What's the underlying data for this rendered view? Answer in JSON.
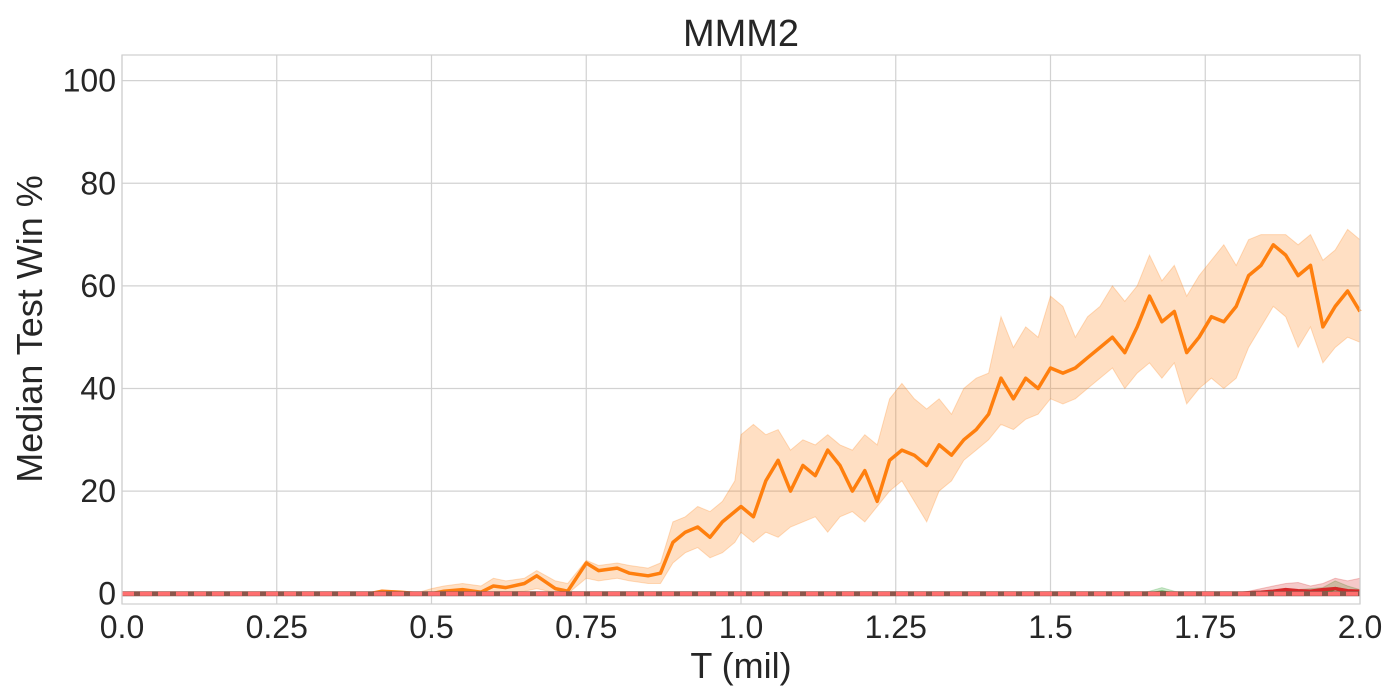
{
  "chart_data": {
    "type": "line",
    "title": "MMM2",
    "xlabel": "T (mil)",
    "ylabel": "Median Test Win %",
    "xlim": [
      0.0,
      2.0
    ],
    "ylim": [
      -2,
      105
    ],
    "xticks": [
      "0.0",
      "0.25",
      "0.5",
      "0.75",
      "1.0",
      "1.25",
      "1.5",
      "1.75",
      "2.0"
    ],
    "xtick_values": [
      0.0,
      0.25,
      0.5,
      0.75,
      1.0,
      1.25,
      1.5,
      1.75,
      2.0
    ],
    "yticks": [
      "0",
      "20",
      "40",
      "60",
      "80",
      "100"
    ],
    "ytick_values": [
      0,
      20,
      40,
      60,
      80,
      100
    ],
    "grid": true,
    "legend": null,
    "series": [
      {
        "color": "#ff7f0e",
        "style": "solid",
        "x": [
          0.0,
          0.4,
          0.42,
          0.45,
          0.48,
          0.5,
          0.52,
          0.55,
          0.58,
          0.6,
          0.62,
          0.65,
          0.67,
          0.7,
          0.72,
          0.75,
          0.77,
          0.8,
          0.82,
          0.85,
          0.87,
          0.89,
          0.91,
          0.93,
          0.95,
          0.97,
          0.99,
          1.0,
          1.02,
          1.04,
          1.06,
          1.08,
          1.1,
          1.12,
          1.14,
          1.16,
          1.18,
          1.2,
          1.22,
          1.24,
          1.26,
          1.28,
          1.3,
          1.32,
          1.34,
          1.36,
          1.38,
          1.4,
          1.42,
          1.44,
          1.46,
          1.48,
          1.5,
          1.52,
          1.54,
          1.56,
          1.58,
          1.6,
          1.62,
          1.64,
          1.66,
          1.68,
          1.7,
          1.72,
          1.74,
          1.76,
          1.78,
          1.8,
          1.82,
          1.84,
          1.86,
          1.88,
          1.9,
          1.92,
          1.94,
          1.96,
          1.98,
          2.0
        ],
        "y": [
          0,
          0,
          0.5,
          0.3,
          0,
          0,
          0.5,
          0.8,
          0.3,
          1.5,
          1.2,
          2.0,
          3.5,
          1.0,
          0.5,
          6.0,
          4.5,
          5.0,
          4.0,
          3.5,
          4.0,
          10.0,
          12.0,
          13.0,
          11.0,
          14.0,
          16.0,
          17.0,
          15.0,
          22.0,
          26.0,
          20.0,
          25.0,
          23.0,
          28.0,
          25.0,
          20.0,
          24.0,
          18.0,
          26.0,
          28.0,
          27.0,
          25.0,
          29.0,
          27.0,
          30.0,
          32.0,
          35.0,
          42.0,
          38.0,
          42.0,
          40.0,
          44.0,
          43.0,
          44.0,
          46.0,
          48.0,
          50.0,
          47.0,
          52.0,
          58.0,
          53.0,
          55.0,
          47.0,
          50.0,
          54.0,
          53.0,
          56.0,
          62.0,
          64.0,
          68.0,
          66.0,
          62.0,
          64.0,
          52.0,
          56.0,
          59.0,
          55.0
        ],
        "band_lower": [
          0,
          0,
          0,
          0,
          0,
          0,
          0,
          0,
          0,
          0.3,
          0.3,
          0.5,
          1.0,
          0.2,
          0,
          3.0,
          2.5,
          3.0,
          2.5,
          2.0,
          2.0,
          6.0,
          8.0,
          9.0,
          7.0,
          8.0,
          10.0,
          12.0,
          10.0,
          12.0,
          11.0,
          13.0,
          14.0,
          15.0,
          12.0,
          15.0,
          16.0,
          14.0,
          17.0,
          20.0,
          22.0,
          18.0,
          14.0,
          20.0,
          22.0,
          26.0,
          28.0,
          30.0,
          33.0,
          32.0,
          34.0,
          35.0,
          38.0,
          37.0,
          38.0,
          40.0,
          42.0,
          44.0,
          40.0,
          43.0,
          45.0,
          42.0,
          45.0,
          37.0,
          40.0,
          42.0,
          40.0,
          42.0,
          48.0,
          52.0,
          56.0,
          54.0,
          48.0,
          52.0,
          45.0,
          48.0,
          50.0,
          49.0
        ],
        "band_upper": [
          0,
          0,
          0.6,
          0.5,
          0.3,
          1.0,
          1.5,
          2.0,
          1.5,
          3.0,
          2.5,
          3.0,
          4.5,
          2.5,
          2.0,
          6.5,
          5.5,
          6.0,
          5.5,
          5.0,
          6.0,
          14.0,
          15.0,
          17.0,
          16.0,
          18.0,
          22.0,
          31.0,
          33.0,
          31.0,
          32.0,
          28.0,
          30.0,
          29.0,
          31.0,
          29.0,
          28.0,
          31.0,
          29.0,
          38.0,
          41.0,
          38.0,
          36.0,
          38.0,
          35.0,
          40.0,
          42.0,
          43.0,
          54.0,
          48.0,
          52.0,
          50.0,
          58.0,
          56.0,
          50.0,
          54.0,
          56.0,
          60.0,
          57.0,
          60.0,
          66.0,
          61.0,
          64.0,
          58.0,
          62.0,
          65.0,
          68.0,
          64.0,
          69.0,
          70.0,
          70.0,
          70.0,
          68.0,
          70.0,
          65.0,
          67.0,
          71.0,
          69.0
        ]
      },
      {
        "color": "#2ca02c",
        "style": "solid",
        "x": [
          0.0,
          1.64,
          1.66,
          1.68,
          1.7,
          1.72,
          1.86,
          1.88,
          1.9,
          1.92,
          1.94,
          1.96,
          1.98,
          2.0
        ],
        "y": [
          0,
          0,
          0,
          0.3,
          0,
          0,
          0,
          0.5,
          0.2,
          0.5,
          0.2,
          1.0,
          0.5,
          0
        ],
        "band_lower": [
          0,
          0,
          0,
          0,
          0,
          0,
          0,
          0,
          0,
          0,
          0,
          0,
          0,
          0
        ],
        "band_upper": [
          0,
          0,
          0.5,
          1.2,
          0.5,
          0,
          0,
          1.0,
          0.8,
          1.0,
          1.2,
          2.5,
          1.5,
          0.8
        ]
      },
      {
        "color": "#d62728",
        "style": "solid",
        "x": [
          0.0,
          1.8,
          1.82,
          1.84,
          1.86,
          1.88,
          1.9,
          1.92,
          1.94,
          1.96,
          1.98,
          2.0
        ],
        "y": [
          0,
          0,
          0.2,
          0.3,
          0.5,
          0.8,
          0.6,
          0.5,
          0.8,
          1.0,
          0.6,
          0.5
        ],
        "band_lower": [
          0,
          0,
          0,
          0,
          0,
          0,
          0,
          0,
          0,
          0,
          0,
          0
        ],
        "band_upper": [
          0,
          0,
          0.5,
          1.0,
          1.5,
          2.0,
          2.2,
          1.5,
          2.0,
          3.0,
          2.5,
          3.0
        ]
      },
      {
        "color": "#1f77b4",
        "style": "solid",
        "x": [
          0.0,
          2.0
        ],
        "y": [
          0,
          0
        ],
        "band_lower": [
          0,
          0
        ],
        "band_upper": [
          0,
          0
        ]
      },
      {
        "color": "#8c564b",
        "style": "solid",
        "x": [
          0.0,
          2.0
        ],
        "y": [
          0,
          0
        ],
        "band_lower": [
          0,
          0
        ],
        "band_upper": [
          0,
          0
        ]
      },
      {
        "color": "#ff6f6f",
        "style": "dashed",
        "x": [
          0.0,
          2.0
        ],
        "y": [
          0,
          0
        ],
        "band_lower": [
          0,
          0
        ],
        "band_upper": [
          0,
          0
        ]
      }
    ]
  }
}
